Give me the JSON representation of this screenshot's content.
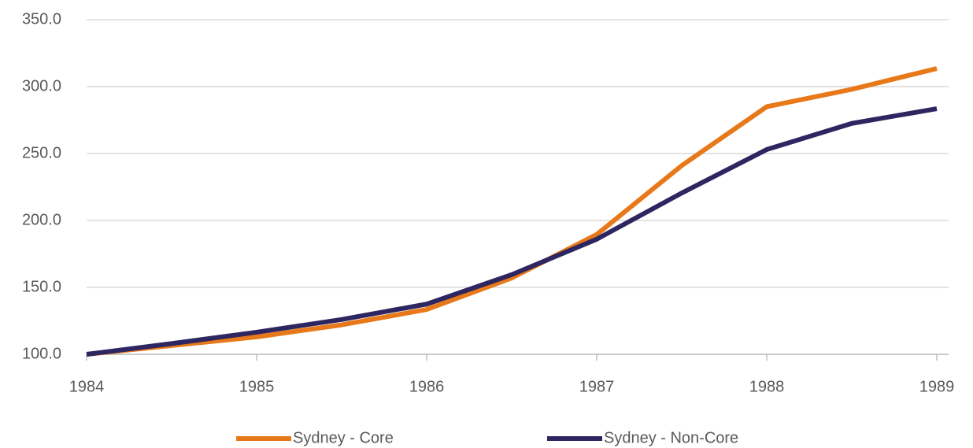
{
  "chart_data": {
    "type": "line",
    "x": [
      1984,
      1984.5,
      1985,
      1985.5,
      1986,
      1986.5,
      1987,
      1987.5,
      1988,
      1988.5,
      1989
    ],
    "series": [
      {
        "name": "Sydney - Core",
        "color": "#e8791a",
        "values": [
          100,
          106.5,
          113,
          122,
          133.5,
          157,
          189.5,
          241,
          285,
          298,
          313.5
        ]
      },
      {
        "name": "Sydney - Non-Core",
        "color": "#2e2660",
        "values": [
          100,
          108,
          116.5,
          126,
          137.5,
          159.5,
          186,
          220.5,
          253,
          272.5,
          283.5
        ]
      }
    ],
    "xlim": [
      1984,
      1989
    ],
    "xticks": [
      1984,
      1985,
      1986,
      1987,
      1988,
      1989
    ],
    "ylim": [
      100,
      350
    ],
    "yticks": [
      {
        "value": 100,
        "label": "100.0"
      },
      {
        "value": 150,
        "label": "150.0"
      },
      {
        "value": 200,
        "label": "200.0"
      },
      {
        "value": 250,
        "label": "250.0"
      },
      {
        "value": 300,
        "label": "300.0"
      },
      {
        "value": 350,
        "label": "350.0"
      }
    ],
    "grid": true,
    "legend": "bottom"
  }
}
